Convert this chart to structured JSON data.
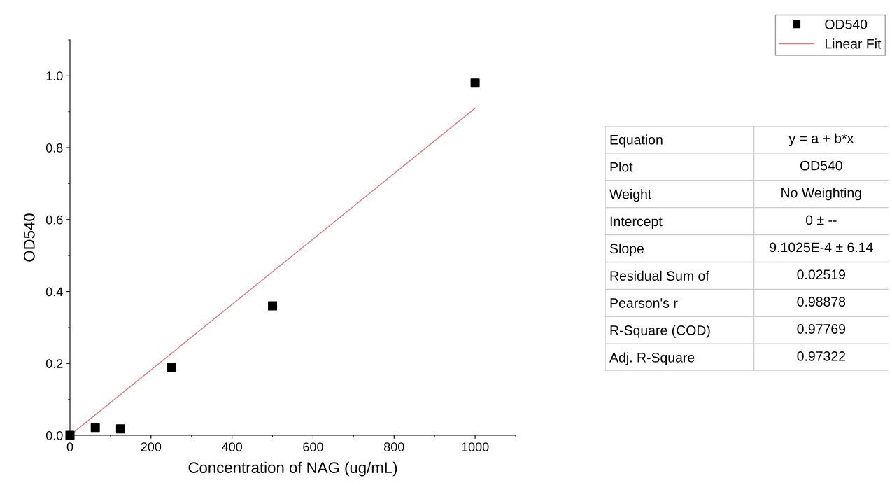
{
  "chart_data": [
    {
      "type": "scatter",
      "xlabel": "Concentration of NAG (ug/mL)",
      "ylabel": "OD540",
      "x": [
        0,
        62.5,
        125,
        250,
        500,
        1000
      ],
      "series": [
        {
          "name": "OD540",
          "type": "scatter",
          "color": "#000000",
          "marker": "square",
          "values": [
            0,
            0.022,
            0.018,
            0.19,
            0.36,
            0.98
          ]
        },
        {
          "name": "Linear Fit",
          "type": "line",
          "color": "#e07b7b",
          "marker": "none",
          "line_style": "solid",
          "x": [
            0,
            1000
          ],
          "values": [
            0,
            0.91
          ]
        }
      ],
      "xlim": [
        0,
        1100
      ],
      "ylim": [
        0,
        1.1
      ],
      "xticks": [
        0,
        200,
        400,
        600,
        800,
        1000
      ],
      "yticks": [
        {
          "value": 0,
          "label": "0.0"
        },
        0.2,
        0.4,
        0.6,
        0.8,
        {
          "value": 1,
          "label": "1.0"
        }
      ],
      "grid": false,
      "legend": "top right"
    },
    {
      "type": "other",
      "annotations": [
        "Equation",
        "y = a + b*x",
        "Plot",
        "OD540",
        "Weight",
        "No Weighting",
        "Intercept",
        "0 ± --",
        "Slope",
        "9.1025E-4 ± 6.14",
        "Residual Sum of",
        "0.02519",
        "Pearson's r",
        "0.98878",
        "R-Square (COD)",
        "0.97769",
        "Adj. R-Square",
        "0.97322"
      ]
    }
  ]
}
